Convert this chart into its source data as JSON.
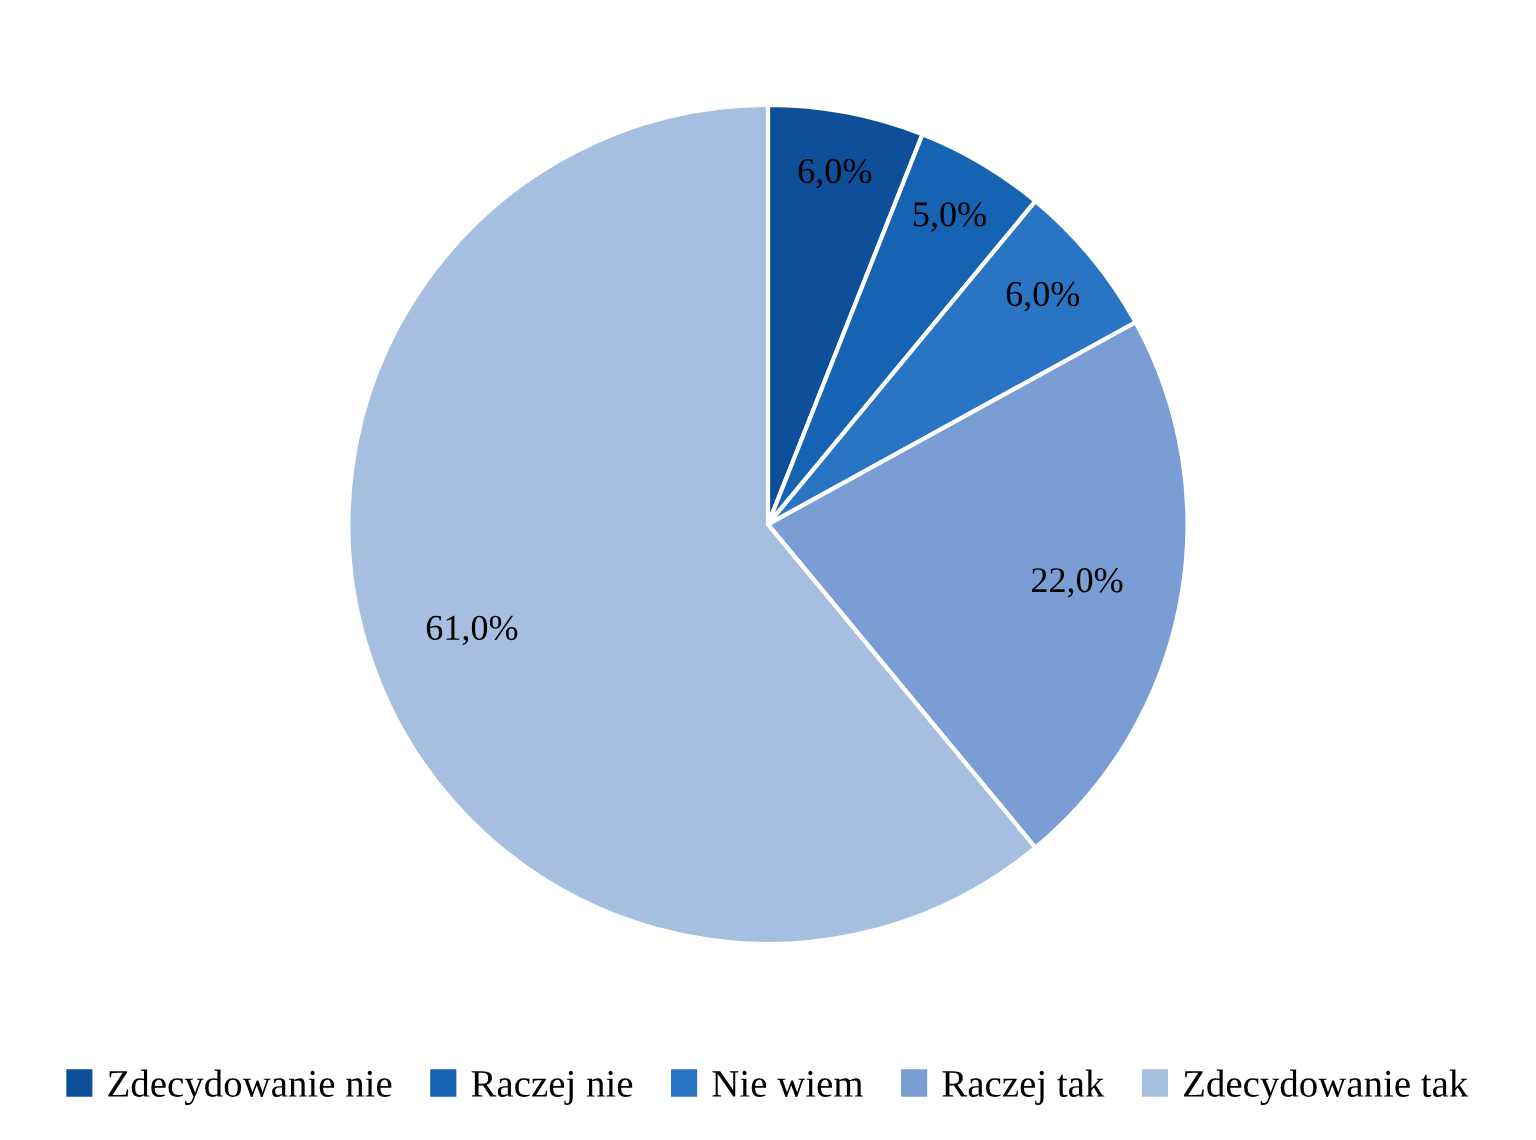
{
  "chart_data": {
    "type": "pie",
    "categories": [
      "Zdecydowanie nie",
      "Raczej nie",
      "Nie wiem",
      "Raczej tak",
      "Zdecydowanie tak"
    ],
    "values": [
      6,
      5,
      6,
      22,
      61
    ],
    "value_labels": [
      "6,0%",
      "5,0%",
      "6,0%",
      "22,0%",
      "61,0%"
    ],
    "colors": [
      "#0d4f98",
      "#1763b3",
      "#2a74c4",
      "#7a9ed3",
      "#a6bfe1"
    ],
    "legend": "bottom"
  }
}
